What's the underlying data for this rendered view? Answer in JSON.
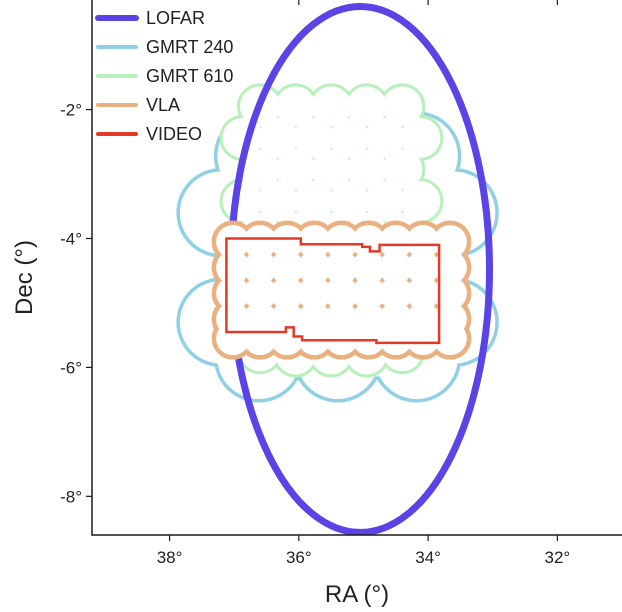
{
  "chart_data": {
    "type": "footprint-map",
    "xlabel": "RA (°)",
    "ylabel": "Dec (°)",
    "xlim": [
      39.2,
      31.0
    ],
    "ylim": [
      -8.6,
      -0.3
    ],
    "x_ticks": [
      {
        "value": 38,
        "label": "38°"
      },
      {
        "value": 36,
        "label": "36°"
      },
      {
        "value": 34,
        "label": "34°"
      },
      {
        "value": 32,
        "label": "32°"
      }
    ],
    "y_ticks": [
      {
        "value": -2,
        "label": "-2°"
      },
      {
        "value": -4,
        "label": "-4°"
      },
      {
        "value": -6,
        "label": "-6°"
      },
      {
        "value": -8,
        "label": "-8°"
      }
    ],
    "grid": false,
    "legend_position": "top-left",
    "series": [
      {
        "name": "LOFAR",
        "color": "#5a44e6",
        "shape": "ellipse",
        "center": [
          35.05,
          -4.48
        ],
        "semi_ra": 2.0,
        "semi_dec": 4.08
      },
      {
        "name": "GMRT 240",
        "color": "#8fd0e4",
        "shape": "mosaic-circles",
        "radius": 0.64,
        "pointings": [
          [
            36.62,
            -2.72
          ],
          [
            35.4,
            -2.72
          ],
          [
            34.18,
            -2.72
          ],
          [
            37.2,
            -3.6
          ],
          [
            33.6,
            -3.6
          ],
          [
            37.2,
            -5.3
          ],
          [
            33.6,
            -5.3
          ],
          [
            36.62,
            -5.85
          ],
          [
            35.4,
            -5.85
          ],
          [
            34.18,
            -5.85
          ],
          [
            36,
            -3
          ],
          [
            34.8,
            -3
          ],
          [
            36,
            -5.5
          ],
          [
            34.8,
            -5.5
          ],
          [
            36.6,
            -4.4
          ],
          [
            34.2,
            -4.4
          ],
          [
            35.4,
            -4.4
          ]
        ]
      },
      {
        "name": "GMRT 610",
        "color": "#b8f0bc",
        "shape": "mosaic-circles",
        "radius": 0.31,
        "pointings": [
          [
            36.6,
            -1.95
          ],
          [
            36.05,
            -1.95
          ],
          [
            35.5,
            -1.95
          ],
          [
            34.95,
            -1.95
          ],
          [
            34.4,
            -1.95
          ],
          [
            36.87,
            -2.44
          ],
          [
            36.32,
            -2.44
          ],
          [
            35.77,
            -2.44
          ],
          [
            35.22,
            -2.44
          ],
          [
            34.67,
            -2.44
          ],
          [
            34.12,
            -2.44
          ],
          [
            36.6,
            -2.93
          ],
          [
            36.05,
            -2.93
          ],
          [
            35.5,
            -2.93
          ],
          [
            34.95,
            -2.93
          ],
          [
            34.4,
            -2.93
          ],
          [
            36.87,
            -3.42
          ],
          [
            36.32,
            -3.42
          ],
          [
            35.77,
            -3.42
          ],
          [
            35.22,
            -3.42
          ],
          [
            34.67,
            -3.42
          ],
          [
            34.12,
            -3.42
          ],
          [
            36.6,
            -3.91
          ],
          [
            36.05,
            -3.91
          ],
          [
            35.5,
            -3.91
          ],
          [
            34.95,
            -3.91
          ],
          [
            34.4,
            -3.91
          ],
          [
            36.87,
            -4.4
          ],
          [
            36.32,
            -4.4
          ],
          [
            35.77,
            -4.4
          ],
          [
            35.22,
            -4.4
          ],
          [
            34.67,
            -4.4
          ],
          [
            34.12,
            -4.4
          ],
          [
            36.6,
            -4.89
          ],
          [
            36.05,
            -4.89
          ],
          [
            35.5,
            -4.89
          ],
          [
            34.95,
            -4.89
          ],
          [
            34.4,
            -4.89
          ],
          [
            36.87,
            -5.38
          ],
          [
            36.32,
            -5.38
          ],
          [
            35.77,
            -5.38
          ],
          [
            35.22,
            -5.38
          ],
          [
            34.67,
            -5.38
          ],
          [
            34.12,
            -5.38
          ],
          [
            36.6,
            -5.75
          ],
          [
            36.05,
            -5.8
          ],
          [
            35.5,
            -5.8
          ],
          [
            34.95,
            -5.8
          ],
          [
            34.4,
            -5.75
          ]
        ]
      },
      {
        "name": "VLA",
        "color": "#eab080",
        "shape": "mosaic-circles",
        "radius": 0.26,
        "pointings": [
          [
            37.02,
            -4.05
          ],
          [
            36.6,
            -4.05
          ],
          [
            36.18,
            -4.05
          ],
          [
            35.76,
            -4.05
          ],
          [
            35.34,
            -4.05
          ],
          [
            34.92,
            -4.05
          ],
          [
            34.5,
            -4.05
          ],
          [
            34.08,
            -4.05
          ],
          [
            33.66,
            -4.05
          ],
          [
            37.02,
            -4.45
          ],
          [
            36.6,
            -4.45
          ],
          [
            36.18,
            -4.45
          ],
          [
            35.76,
            -4.45
          ],
          [
            35.34,
            -4.45
          ],
          [
            34.92,
            -4.45
          ],
          [
            34.5,
            -4.45
          ],
          [
            34.08,
            -4.45
          ],
          [
            33.66,
            -4.45
          ],
          [
            37.02,
            -4.85
          ],
          [
            36.6,
            -4.85
          ],
          [
            36.18,
            -4.85
          ],
          [
            35.76,
            -4.85
          ],
          [
            35.34,
            -4.85
          ],
          [
            34.92,
            -4.85
          ],
          [
            34.5,
            -4.85
          ],
          [
            34.08,
            -4.85
          ],
          [
            33.66,
            -4.85
          ],
          [
            37.02,
            -5.25
          ],
          [
            36.6,
            -5.25
          ],
          [
            36.18,
            -5.25
          ],
          [
            35.76,
            -5.25
          ],
          [
            35.34,
            -5.25
          ],
          [
            34.92,
            -5.25
          ],
          [
            34.5,
            -5.25
          ],
          [
            34.08,
            -5.25
          ],
          [
            33.66,
            -5.25
          ],
          [
            37.02,
            -5.55
          ],
          [
            36.6,
            -5.55
          ],
          [
            36.18,
            -5.55
          ],
          [
            35.76,
            -5.55
          ],
          [
            35.34,
            -5.55
          ],
          [
            34.92,
            -5.55
          ],
          [
            34.5,
            -5.55
          ],
          [
            34.08,
            -5.55
          ],
          [
            33.66,
            -5.55
          ]
        ]
      },
      {
        "name": "VIDEO",
        "color": "#e33a28",
        "shape": "polygon",
        "vertices": [
          [
            37.12,
            -4.0
          ],
          [
            35.97,
            -4.0
          ],
          [
            35.97,
            -4.09
          ],
          [
            35.02,
            -4.09
          ],
          [
            35.02,
            -4.13
          ],
          [
            34.9,
            -4.13
          ],
          [
            34.9,
            -4.2
          ],
          [
            34.75,
            -4.2
          ],
          [
            34.75,
            -4.1
          ],
          [
            33.83,
            -4.1
          ],
          [
            33.83,
            -5.62
          ],
          [
            34.8,
            -5.62
          ],
          [
            34.8,
            -5.58
          ],
          [
            35.95,
            -5.58
          ],
          [
            35.95,
            -5.52
          ],
          [
            36.08,
            -5.52
          ],
          [
            36.08,
            -5.38
          ],
          [
            36.2,
            -5.38
          ],
          [
            36.2,
            -5.45
          ],
          [
            37.12,
            -5.45
          ]
        ]
      }
    ]
  }
}
